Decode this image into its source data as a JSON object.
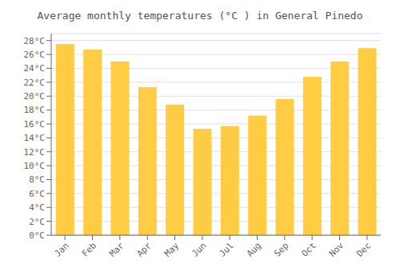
{
  "chart_data": {
    "type": "bar",
    "title": "Average monthly temperatures (°C ) in General Pinedo",
    "categories": [
      "Jan",
      "Feb",
      "Mar",
      "Apr",
      "May",
      "Jun",
      "Jul",
      "Aug",
      "Sep",
      "Oct",
      "Nov",
      "Dec"
    ],
    "values": [
      27.5,
      26.7,
      25.0,
      21.3,
      18.8,
      15.3,
      15.7,
      17.2,
      19.6,
      22.8,
      25.0,
      26.9
    ],
    "color": "#FFCC44",
    "ylim": [
      0,
      29
    ],
    "yticks": [
      {
        "value": 0,
        "label": "0°C"
      },
      {
        "value": 2,
        "label": "2°C"
      },
      {
        "value": 4,
        "label": "4°C"
      },
      {
        "value": 6,
        "label": "6°C"
      },
      {
        "value": 8,
        "label": "8°C"
      },
      {
        "value": 10,
        "label": "10°C"
      },
      {
        "value": 12,
        "label": "12°C"
      },
      {
        "value": 14,
        "label": "14°C"
      },
      {
        "value": 16,
        "label": "16°C"
      },
      {
        "value": 18,
        "label": "18°C"
      },
      {
        "value": 20,
        "label": "20°C"
      },
      {
        "value": 22,
        "label": "22°C"
      },
      {
        "value": 24,
        "label": "24°C"
      },
      {
        "value": 26,
        "label": "26°C"
      },
      {
        "value": 28,
        "label": "28°C"
      }
    ],
    "grid": true
  }
}
